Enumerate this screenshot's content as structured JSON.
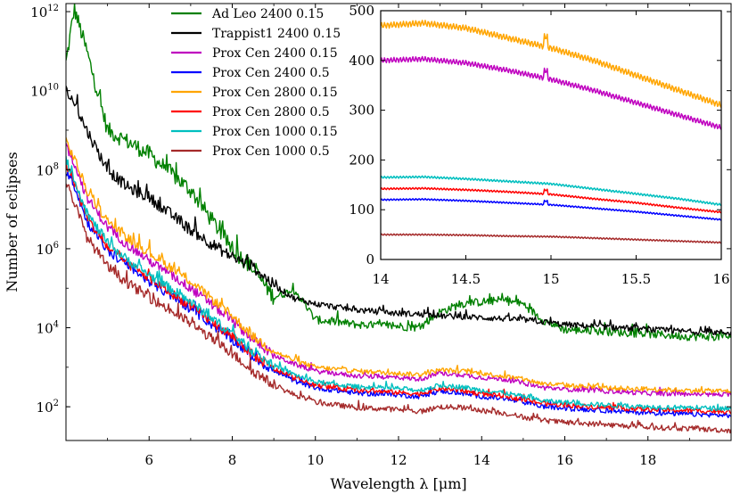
{
  "chart_data": [
    {
      "type": "line",
      "xlabel": "Wavelength λ [μm]",
      "ylabel": "Number of eclipses",
      "xlim": [
        4.0,
        20.0
      ],
      "ylim": [
        14,
        1600000000000.0
      ],
      "yscale": "log",
      "xticks": [
        6,
        8,
        10,
        12,
        14,
        16,
        18
      ],
      "yticks": [
        {
          "value": 100,
          "mantissa": "10",
          "exp": "2"
        },
        {
          "value": 10000,
          "mantissa": "10",
          "exp": "4"
        },
        {
          "value": 1000000,
          "mantissa": "10",
          "exp": "6"
        },
        {
          "value": 100000000,
          "mantissa": "10",
          "exp": "8"
        },
        {
          "value": 10000000000,
          "mantissa": "10",
          "exp": "10"
        },
        {
          "value": 1000000000000,
          "mantissa": "10",
          "exp": "12"
        }
      ],
      "legend_position": "top-center",
      "grid": false,
      "x": [
        4.0,
        4.2,
        4.5,
        5.0,
        5.5,
        6.0,
        7.0,
        8.0,
        8.5,
        9.0,
        9.5,
        10.0,
        11.0,
        12.0,
        12.5,
        13.0,
        13.5,
        14.0,
        14.5,
        15.0,
        15.5,
        16.0,
        17.0,
        18.0,
        19.0,
        20.0
      ],
      "series": [
        {
          "name": "Ad Leo 2400 0.15",
          "color": "#008000",
          "noise": 0.35,
          "values": [
            50000000000.0,
            1200000000000.0,
            100000000000.0,
            1000000000.0,
            500000000.0,
            250000000.0,
            30000000.0,
            1000000.0,
            300000.0,
            60000.0,
            90000.0,
            16000.0,
            12000.0,
            11000.0,
            10000.0,
            25000.0,
            40000.0,
            45000.0,
            50000.0,
            40000.0,
            15000.0,
            9000.0,
            8000.0,
            7000.0,
            6000.0,
            6000.0
          ]
        },
        {
          "name": "Trappist1 2400 0.15",
          "color": "#000000",
          "noise": 0.25,
          "values": [
            10000000000.0,
            5000000000.0,
            1000000000.0,
            100000000.0,
            35000000.0,
            20000000.0,
            3000000.0,
            600000.0,
            350000.0,
            120000.0,
            55000.0,
            40000.0,
            28000.0,
            23000.0,
            22000.0,
            20000.0,
            19000.0,
            18000.0,
            17000.0,
            16000.0,
            14000.0,
            12000.0,
            10500.0,
            9000.0,
            8000.0,
            7500.0
          ]
        },
        {
          "name": "Prox Cen 2400 0.15",
          "color": "#bf00bf",
          "noise": 0.2,
          "values": [
            400000000.0,
            150000000.0,
            20000000.0,
            3500000.0,
            1200000.0,
            500000.0,
            100000.0,
            15000.0,
            5000.0,
            2000.0,
            1200.0,
            800,
            600,
            550,
            500,
            700,
            650,
            550,
            500,
            400,
            300,
            280,
            250,
            220,
            210,
            200
          ]
        },
        {
          "name": "Prox Cen 2400 0.5",
          "color": "#0000ff",
          "noise": 0.2,
          "values": [
            100000000.0,
            40000000.0,
            5000000.0,
            900000.0,
            350000.0,
            150000.0,
            30000.0,
            5000.0,
            1800.0,
            800,
            450,
            300,
            220,
            200,
            180,
            250,
            220,
            180,
            160,
            130,
            100,
            90,
            80,
            70,
            65,
            60
          ]
        },
        {
          "name": "Prox Cen 2800 0.15",
          "color": "#ffa500",
          "noise": 0.2,
          "values": [
            500000000.0,
            200000000.0,
            30000000.0,
            5000000.0,
            1800000.0,
            800000.0,
            150000.0,
            20000.0,
            6000.0,
            2500.0,
            1500.0,
            1000.0,
            800,
            700,
            650,
            850,
            800,
            700,
            600,
            500,
            380,
            350,
            300,
            280,
            260,
            250
          ]
        },
        {
          "name": "Prox Cen 2800 0.5",
          "color": "#ff0000",
          "noise": 0.2,
          "values": [
            140000000.0,
            50000000.0,
            6000000.0,
            1100000.0,
            400000.0,
            180000.0,
            35000.0,
            6000.0,
            2000.0,
            900,
            520,
            350,
            260,
            230,
            210,
            290,
            260,
            210,
            190,
            150,
            120,
            110,
            95,
            85,
            80,
            75
          ]
        },
        {
          "name": "Prox Cen 1000 0.15",
          "color": "#00bfbf",
          "noise": 0.2,
          "values": [
            170000000.0,
            60000000.0,
            8000000.0,
            1400000.0,
            500000.0,
            220000.0,
            45000.0,
            7000.0,
            2500.0,
            1100.0,
            650,
            420,
            320,
            290,
            260,
            350,
            320,
            260,
            230,
            180,
            140,
            130,
            110,
            100,
            95,
            90
          ]
        },
        {
          "name": "Prox Cen 1000 0.5",
          "color": "#a52a2a",
          "noise": 0.22,
          "values": [
            50000000.0,
            15000000.0,
            2000000.0,
            350000.0,
            130000.0,
            60000.0,
            13000.0,
            2200.0,
            800,
            350,
            200,
            130,
            95,
            85,
            75,
            100,
            95,
            80,
            70,
            55,
            45,
            40,
            35,
            30,
            28,
            25
          ]
        }
      ]
    },
    {
      "type": "line",
      "xlim": [
        14,
        16
      ],
      "ylim": [
        0,
        500
      ],
      "xticks": [
        {
          "value": 14,
          "label": "14"
        },
        {
          "value": 14.5,
          "label": "14.5"
        },
        {
          "value": 15,
          "label": "15"
        },
        {
          "value": 15.5,
          "label": "15.5"
        },
        {
          "value": 16,
          "label": "16"
        }
      ],
      "yticks": [
        0,
        100,
        200,
        300,
        400,
        500
      ],
      "x": [
        14.0,
        14.25,
        14.5,
        14.75,
        15.0,
        15.25,
        15.5,
        15.75,
        16.0
      ],
      "ripple": 6,
      "series": [
        {
          "name": "Prox Cen 2800 0.15",
          "color": "#ffa500",
          "values": [
            470,
            475,
            465,
            445,
            425,
            400,
            370,
            340,
            310
          ],
          "peak": 20
        },
        {
          "name": "Prox Cen 2400 0.15",
          "color": "#bf00bf",
          "values": [
            400,
            403,
            395,
            380,
            362,
            340,
            315,
            290,
            265
          ],
          "peak": 15
        },
        {
          "name": "Prox Cen 1000 0.15",
          "color": "#00bfbf",
          "values": [
            165,
            166,
            162,
            157,
            152,
            142,
            132,
            122,
            110
          ],
          "peak": 0
        },
        {
          "name": "Prox Cen 2800 0.5",
          "color": "#ff0000",
          "values": [
            142,
            143,
            140,
            136,
            131,
            122,
            114,
            104,
            95
          ],
          "peak": 8
        },
        {
          "name": "Prox Cen 2400 0.5",
          "color": "#0000ff",
          "values": [
            120,
            121,
            118,
            114,
            110,
            103,
            96,
            88,
            80
          ],
          "peak": 7
        },
        {
          "name": "Prox Cen 1000 0.5",
          "color": "#a52a2a",
          "values": [
            50,
            50,
            49,
            47,
            46,
            43,
            40,
            37,
            34
          ],
          "peak": 0
        }
      ]
    }
  ]
}
